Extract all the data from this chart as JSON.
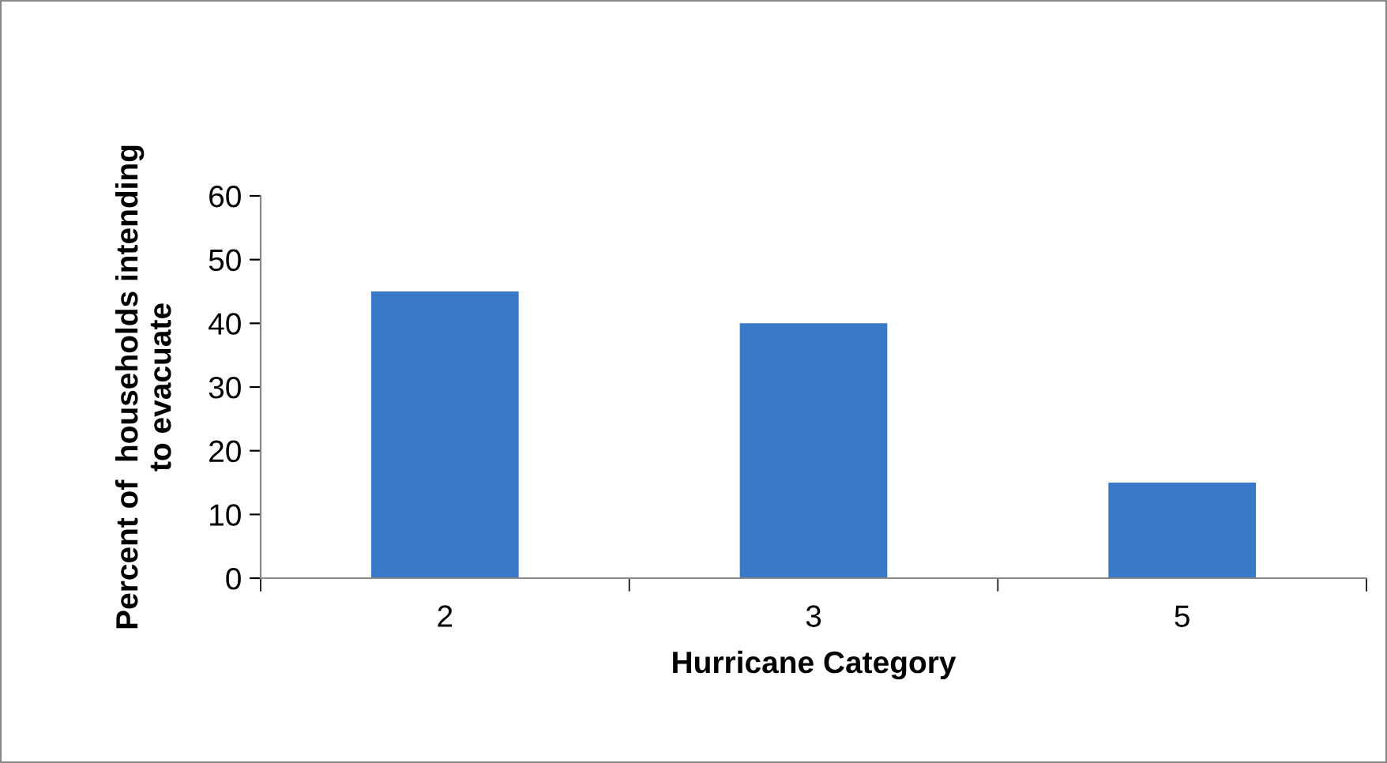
{
  "chart_data": {
    "type": "bar",
    "xlabel": "Hurricane Category",
    "ylabel": "Percent of  households intending\nto evacuate",
    "categories": [
      "2",
      "3",
      "5"
    ],
    "values": [
      45,
      40,
      15
    ],
    "color": "#3a78c8",
    "ylim": [
      0,
      60
    ],
    "yticks": [
      0,
      10,
      20,
      30,
      40,
      50,
      60
    ],
    "grid": false,
    "legend": false
  }
}
